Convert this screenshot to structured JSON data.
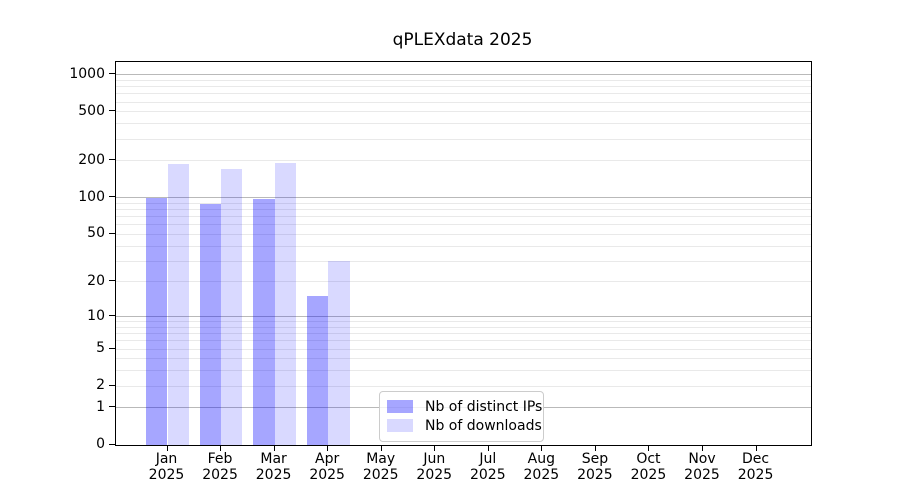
{
  "title": "qPLEXdata 2025",
  "chart_data": {
    "type": "bar",
    "title": "qPLEXdata 2025",
    "categories": [
      "Jan 2025",
      "Feb 2025",
      "Mar 2025",
      "Apr 2025",
      "May 2025",
      "Jun 2025",
      "Jul 2025",
      "Aug 2025",
      "Sep 2025",
      "Oct 2025",
      "Nov 2025",
      "Dec 2025"
    ],
    "series": [
      {
        "name": "Nb of distinct IPs",
        "color": "#0000ff",
        "opacity": 0.35,
        "values": [
          100,
          89,
          97,
          15,
          0,
          0,
          0,
          0,
          0,
          0,
          0,
          0
        ]
      },
      {
        "name": "Nb of downloads",
        "color": "#0000ff",
        "opacity": 0.15,
        "values": [
          190,
          173,
          194,
          30,
          0,
          0,
          0,
          0,
          0,
          0,
          0,
          0
        ]
      }
    ],
    "xlabel": "",
    "ylabel": "",
    "yticks": [
      0,
      1,
      2,
      5,
      10,
      20,
      50,
      100,
      200,
      500,
      1000
    ],
    "ylim": [
      0,
      1300
    ],
    "scale": "log1p",
    "grid": "horizontal-major-and-minor",
    "legend_position": "lower-center"
  },
  "colors": {
    "bar_distinct_ips_on_white": "#a6a6ff",
    "bar_downloads_on_white": "#d9d9ff",
    "major_grid": "#b9b9b9",
    "minor_grid": "#e9e9e9",
    "axis": "#000000",
    "background": "#ffffff"
  }
}
